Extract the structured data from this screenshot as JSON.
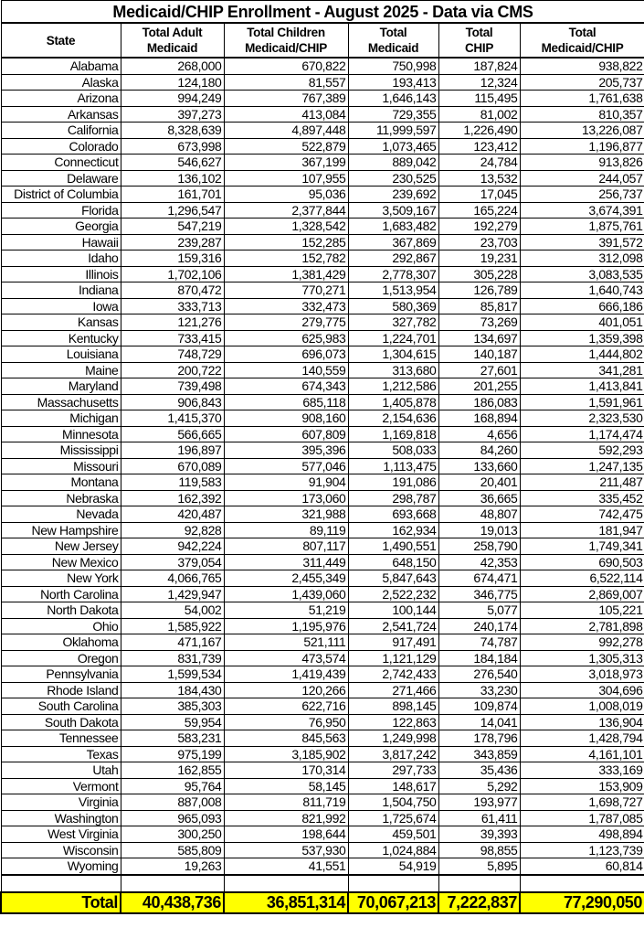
{
  "title": "Medicaid/CHIP Enrollment - August 2025 - Data via CMS",
  "columns": [
    "State",
    "Total Adult\nMedicaid",
    "Total Children\nMedicaid/CHIP",
    "Total\nMedicaid",
    "Total\nCHIP",
    "Total\nMedicaid/CHIP"
  ],
  "highlight_color": "#ffff00",
  "rows": [
    [
      "Alabama",
      "268,000",
      "670,822",
      "750,998",
      "187,824",
      "938,822"
    ],
    [
      "Alaska",
      "124,180",
      "81,557",
      "193,413",
      "12,324",
      "205,737"
    ],
    [
      "Arizona",
      "994,249",
      "767,389",
      "1,646,143",
      "115,495",
      "1,761,638"
    ],
    [
      "Arkansas",
      "397,273",
      "413,084",
      "729,355",
      "81,002",
      "810,357"
    ],
    [
      "California",
      "8,328,639",
      "4,897,448",
      "11,999,597",
      "1,226,490",
      "13,226,087"
    ],
    [
      "Colorado",
      "673,998",
      "522,879",
      "1,073,465",
      "123,412",
      "1,196,877"
    ],
    [
      "Connecticut",
      "546,627",
      "367,199",
      "889,042",
      "24,784",
      "913,826"
    ],
    [
      "Delaware",
      "136,102",
      "107,955",
      "230,525",
      "13,532",
      "244,057"
    ],
    [
      "District of Columbia",
      "161,701",
      "95,036",
      "239,692",
      "17,045",
      "256,737"
    ],
    [
      "Florida",
      "1,296,547",
      "2,377,844",
      "3,509,167",
      "165,224",
      "3,674,391"
    ],
    [
      "Georgia",
      "547,219",
      "1,328,542",
      "1,683,482",
      "192,279",
      "1,875,761"
    ],
    [
      "Hawaii",
      "239,287",
      "152,285",
      "367,869",
      "23,703",
      "391,572"
    ],
    [
      "Idaho",
      "159,316",
      "152,782",
      "292,867",
      "19,231",
      "312,098"
    ],
    [
      "Illinois",
      "1,702,106",
      "1,381,429",
      "2,778,307",
      "305,228",
      "3,083,535"
    ],
    [
      "Indiana",
      "870,472",
      "770,271",
      "1,513,954",
      "126,789",
      "1,640,743"
    ],
    [
      "Iowa",
      "333,713",
      "332,473",
      "580,369",
      "85,817",
      "666,186"
    ],
    [
      "Kansas",
      "121,276",
      "279,775",
      "327,782",
      "73,269",
      "401,051"
    ],
    [
      "Kentucky",
      "733,415",
      "625,983",
      "1,224,701",
      "134,697",
      "1,359,398"
    ],
    [
      "Louisiana",
      "748,729",
      "696,073",
      "1,304,615",
      "140,187",
      "1,444,802"
    ],
    [
      "Maine",
      "200,722",
      "140,559",
      "313,680",
      "27,601",
      "341,281"
    ],
    [
      "Maryland",
      "739,498",
      "674,343",
      "1,212,586",
      "201,255",
      "1,413,841"
    ],
    [
      "Massachusetts",
      "906,843",
      "685,118",
      "1,405,878",
      "186,083",
      "1,591,961"
    ],
    [
      "Michigan",
      "1,415,370",
      "908,160",
      "2,154,636",
      "168,894",
      "2,323,530"
    ],
    [
      "Minnesota",
      "566,665",
      "607,809",
      "1,169,818",
      "4,656",
      "1,174,474"
    ],
    [
      "Mississippi",
      "196,897",
      "395,396",
      "508,033",
      "84,260",
      "592,293"
    ],
    [
      "Missouri",
      "670,089",
      "577,046",
      "1,113,475",
      "133,660",
      "1,247,135"
    ],
    [
      "Montana",
      "119,583",
      "91,904",
      "191,086",
      "20,401",
      "211,487"
    ],
    [
      "Nebraska",
      "162,392",
      "173,060",
      "298,787",
      "36,665",
      "335,452"
    ],
    [
      "Nevada",
      "420,487",
      "321,988",
      "693,668",
      "48,807",
      "742,475"
    ],
    [
      "New Hampshire",
      "92,828",
      "89,119",
      "162,934",
      "19,013",
      "181,947"
    ],
    [
      "New Jersey",
      "942,224",
      "807,117",
      "1,490,551",
      "258,790",
      "1,749,341"
    ],
    [
      "New Mexico",
      "379,054",
      "311,449",
      "648,150",
      "42,353",
      "690,503"
    ],
    [
      "New York",
      "4,066,765",
      "2,455,349",
      "5,847,643",
      "674,471",
      "6,522,114"
    ],
    [
      "North Carolina",
      "1,429,947",
      "1,439,060",
      "2,522,232",
      "346,775",
      "2,869,007"
    ],
    [
      "North Dakota",
      "54,002",
      "51,219",
      "100,144",
      "5,077",
      "105,221"
    ],
    [
      "Ohio",
      "1,585,922",
      "1,195,976",
      "2,541,724",
      "240,174",
      "2,781,898"
    ],
    [
      "Oklahoma",
      "471,167",
      "521,111",
      "917,491",
      "74,787",
      "992,278"
    ],
    [
      "Oregon",
      "831,739",
      "473,574",
      "1,121,129",
      "184,184",
      "1,305,313"
    ],
    [
      "Pennsylvania",
      "1,599,534",
      "1,419,439",
      "2,742,433",
      "276,540",
      "3,018,973"
    ],
    [
      "Rhode Island",
      "184,430",
      "120,266",
      "271,466",
      "33,230",
      "304,696"
    ],
    [
      "South Carolina",
      "385,303",
      "622,716",
      "898,145",
      "109,874",
      "1,008,019"
    ],
    [
      "South Dakota",
      "59,954",
      "76,950",
      "122,863",
      "14,041",
      "136,904"
    ],
    [
      "Tennessee",
      "583,231",
      "845,563",
      "1,249,998",
      "178,796",
      "1,428,794"
    ],
    [
      "Texas",
      "975,199",
      "3,185,902",
      "3,817,242",
      "343,859",
      "4,161,101"
    ],
    [
      "Utah",
      "162,855",
      "170,314",
      "297,733",
      "35,436",
      "333,169"
    ],
    [
      "Vermont",
      "95,764",
      "58,145",
      "148,617",
      "5,292",
      "153,909"
    ],
    [
      "Virginia",
      "887,008",
      "811,719",
      "1,504,750",
      "193,977",
      "1,698,727"
    ],
    [
      "Washington",
      "965,093",
      "821,992",
      "1,725,674",
      "61,411",
      "1,787,085"
    ],
    [
      "West Virginia",
      "300,250",
      "198,644",
      "459,501",
      "39,393",
      "498,894"
    ],
    [
      "Wisconsin",
      "585,809",
      "537,930",
      "1,024,884",
      "98,855",
      "1,123,739"
    ],
    [
      "Wyoming",
      "19,263",
      "41,551",
      "54,919",
      "5,895",
      "60,814"
    ]
  ],
  "total": [
    "Total",
    "40,438,736",
    "36,851,314",
    "70,067,213",
    "7,222,837",
    "77,290,050"
  ]
}
